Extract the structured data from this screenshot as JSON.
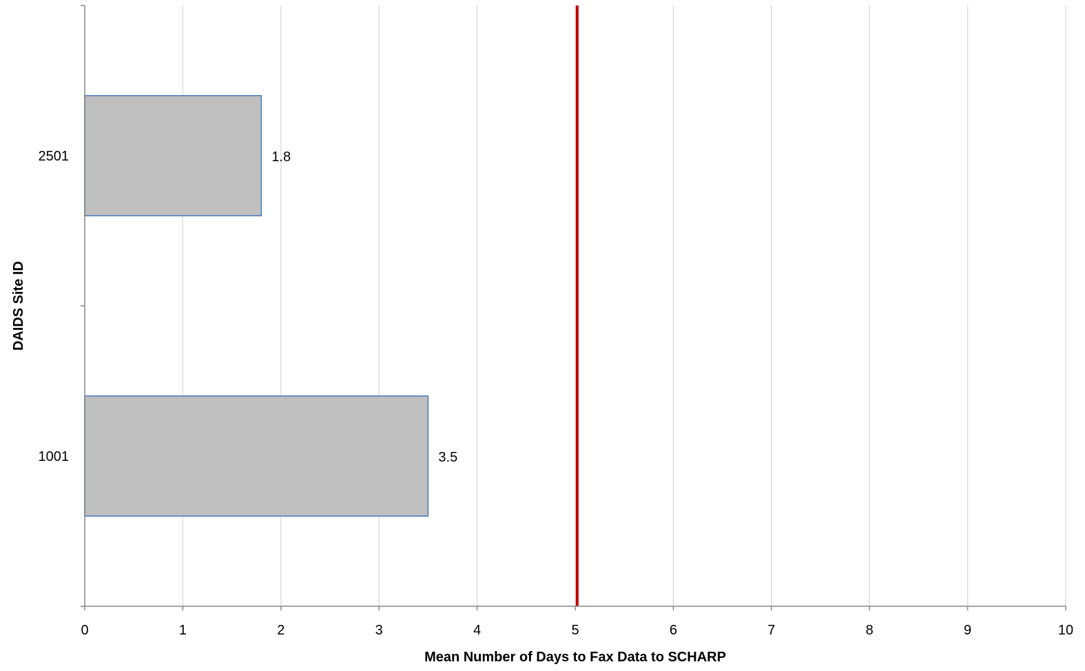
{
  "chart_data": {
    "type": "bar",
    "orientation": "horizontal",
    "title": "",
    "xlabel": "Mean Number of Days to Fax Data to SCHARP",
    "ylabel": "DAIDS Site ID",
    "categories": [
      "2501",
      "1001"
    ],
    "values": [
      1.8,
      3.5
    ],
    "data_labels": [
      "1.8",
      "3.5"
    ],
    "xlim": [
      0,
      10
    ],
    "x_ticks": [
      "0",
      "1",
      "2",
      "3",
      "4",
      "5",
      "6",
      "7",
      "8",
      "9",
      "10"
    ],
    "reference_line": {
      "x": 5.02,
      "color": "#c00000"
    },
    "grid": "vertical",
    "legend": "none",
    "bar_fill": "#bfbfbf",
    "bar_stroke": "#4f81bd"
  }
}
